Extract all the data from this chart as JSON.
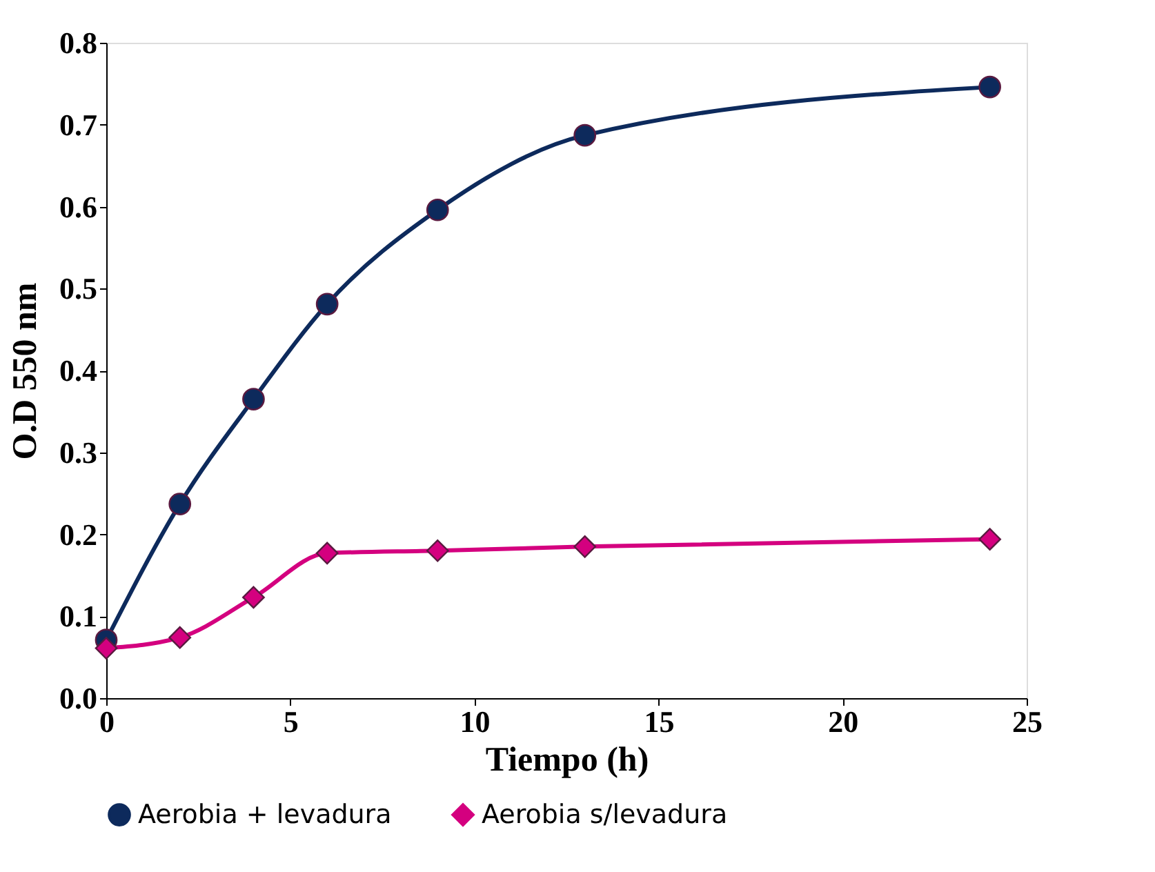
{
  "chart_data": {
    "type": "line",
    "xlabel": "Tiempo (h)",
    "ylabel": "O.D 550 nm",
    "xlim": [
      0,
      25
    ],
    "xticks": [
      0,
      5,
      10,
      15,
      20,
      25
    ],
    "ylim": [
      0,
      0.8
    ],
    "yticks": [
      {
        "value": 0,
        "label": "0.0"
      },
      0.1,
      0.2,
      0.3,
      0.4,
      0.5,
      0.6,
      0.7,
      0.8
    ],
    "grid": false,
    "legend": "bottom",
    "line_style": "solid",
    "series": [
      {
        "name": "Aerobia + levadura",
        "color": "#0d2a5c",
        "marker": "circle",
        "x": [
          0,
          2,
          4,
          6,
          9,
          13,
          24
        ],
        "values": [
          0.071,
          0.237,
          0.365,
          0.481,
          0.596,
          0.687,
          0.746
        ]
      },
      {
        "name": "Aerobia s/levadura",
        "color": "#d4007f",
        "marker": "diamond",
        "x": [
          0,
          2,
          4,
          6,
          9,
          13,
          24
        ],
        "values": [
          0.061,
          0.074,
          0.123,
          0.177,
          0.18,
          0.185,
          0.194
        ]
      }
    ]
  }
}
